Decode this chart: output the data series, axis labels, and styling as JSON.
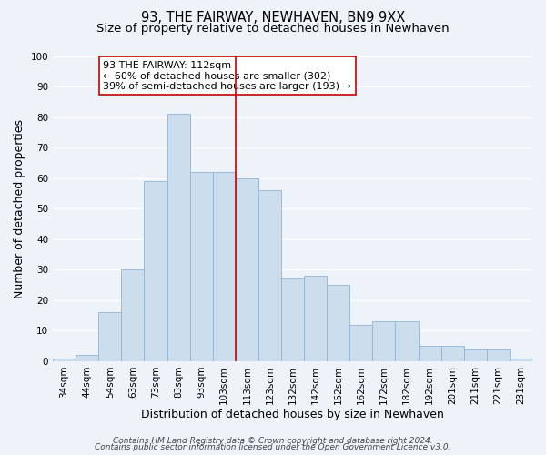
{
  "title": "93, THE FAIRWAY, NEWHAVEN, BN9 9XX",
  "subtitle": "Size of property relative to detached houses in Newhaven",
  "xlabel": "Distribution of detached houses by size in Newhaven",
  "ylabel": "Number of detached properties",
  "categories": [
    "34sqm",
    "44sqm",
    "54sqm",
    "63sqm",
    "73sqm",
    "83sqm",
    "93sqm",
    "103sqm",
    "113sqm",
    "123sqm",
    "132sqm",
    "142sqm",
    "152sqm",
    "162sqm",
    "172sqm",
    "182sqm",
    "192sqm",
    "201sqm",
    "211sqm",
    "221sqm",
    "231sqm"
  ],
  "values": [
    1,
    2,
    16,
    30,
    59,
    81,
    62,
    62,
    60,
    56,
    27,
    28,
    25,
    12,
    13,
    13,
    5,
    5,
    4,
    4,
    1
  ],
  "bar_color": "#ccdded",
  "bar_edge_color": "#92b4d0",
  "vline_x_index": 8,
  "vline_color": "#cc0000",
  "annotation_title": "93 THE FAIRWAY: 112sqm",
  "annotation_line1": "← 60% of detached houses are smaller (302)",
  "annotation_line2": "39% of semi-detached houses are larger (193) →",
  "annotation_box_facecolor": "#ffffff",
  "annotation_box_edgecolor": "#cc0000",
  "ylim": [
    0,
    100
  ],
  "yticks": [
    0,
    10,
    20,
    30,
    40,
    50,
    60,
    70,
    80,
    90,
    100
  ],
  "footer1": "Contains HM Land Registry data © Crown copyright and database right 2024.",
  "footer2": "Contains public sector information licensed under the Open Government Licence v3.0.",
  "background_color": "#eef2f9",
  "grid_color": "#ffffff",
  "title_fontsize": 10.5,
  "subtitle_fontsize": 9.5,
  "axis_label_fontsize": 9,
  "tick_fontsize": 7.5,
  "annotation_fontsize": 8,
  "footer_fontsize": 6.5
}
